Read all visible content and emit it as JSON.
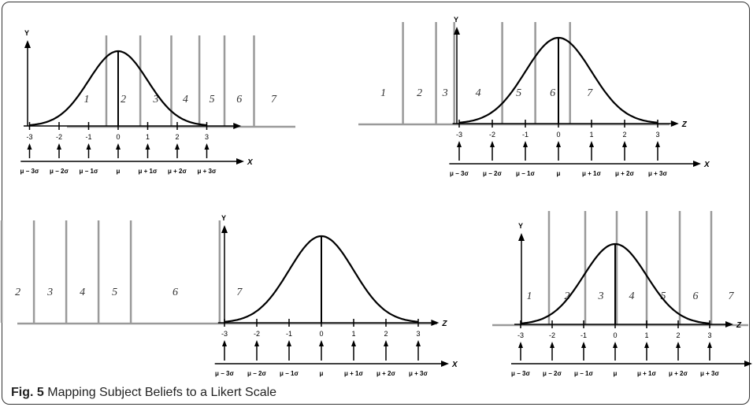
{
  "caption": {
    "fig_label": "Fig. 5",
    "text": "Mapping Subject Beliefs to a Likert Scale"
  },
  "axes": {
    "y_label": "Y",
    "x_label": "X",
    "z_label": "Z"
  },
  "z_ticks": [
    "-3",
    "-2",
    "-1",
    "0",
    "1",
    "2",
    "3"
  ],
  "x_ticks": [
    "μ − 3σ",
    "μ − 2σ",
    "μ − 1σ",
    "μ",
    "μ + 1σ",
    "μ + 2σ",
    "μ + 3σ"
  ],
  "likert_categories": [
    "1",
    "2",
    "3",
    "4",
    "5",
    "6",
    "7"
  ],
  "panels": [
    {
      "id": "top-left",
      "shows_z_label": false,
      "category_boundaries_z": [
        -0.4,
        0.75,
        1.8,
        2.75,
        3.6,
        4.6
      ]
    },
    {
      "id": "top-right",
      "shows_z_label": true,
      "category_boundaries_z": [
        -4.7,
        -3.7,
        -3.15,
        -1.7,
        -0.7,
        0.35
      ]
    },
    {
      "id": "bottom-left",
      "shows_z_label": true,
      "category_boundaries_z": [
        -9.9,
        -8.9,
        -7.9,
        -6.9,
        -5.9,
        -3.15
      ]
    },
    {
      "id": "bottom-right",
      "shows_z_label": true,
      "category_boundaries_z": [
        -2.1,
        -0.95,
        0.05,
        1.0,
        2.05,
        3.05
      ]
    }
  ],
  "colors": {
    "curve": "#000000",
    "boundaries": "#9a9a9a",
    "axis": "#000000",
    "category_text": "#555555"
  }
}
